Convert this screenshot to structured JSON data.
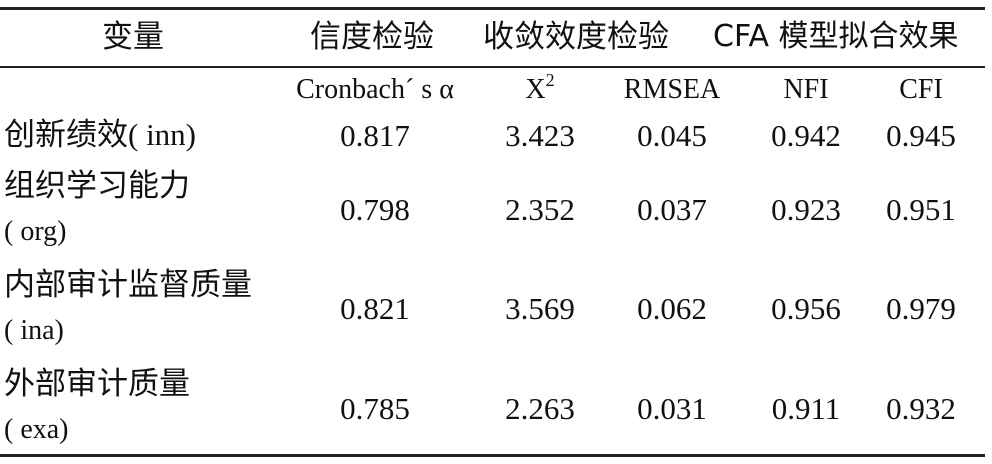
{
  "header": {
    "variable": "变量",
    "reliability": "信度检验",
    "convergent": "收敛效度检验",
    "cfa_fit": "CFA 模型拟合效果"
  },
  "subheader": {
    "cronbach": "Cronbach´ s α",
    "chi_base": "X",
    "chi_sup": "2",
    "rmsea": "RMSEA",
    "nfi": "NFI",
    "cfi": "CFI"
  },
  "rows": [
    {
      "name": "创新绩效",
      "code": "( inn)",
      "alpha": "0.817",
      "chi2": "3.423",
      "rmsea": "0.045",
      "nfi": "0.942",
      "cfi": "0.945"
    },
    {
      "name": "组织学习能力",
      "code": "( org)",
      "alpha": "0.798",
      "chi2": "2.352",
      "rmsea": "0.037",
      "nfi": "0.923",
      "cfi": "0.951"
    },
    {
      "name": "内部审计监督质量",
      "code": "( ina)",
      "alpha": "0.821",
      "chi2": "3.569",
      "rmsea": "0.062",
      "nfi": "0.956",
      "cfi": "0.979"
    },
    {
      "name": "外部审计质量",
      "code": "( exa)",
      "alpha": "0.785",
      "chi2": "2.263",
      "rmsea": "0.031",
      "nfi": "0.911",
      "cfi": "0.932"
    }
  ]
}
